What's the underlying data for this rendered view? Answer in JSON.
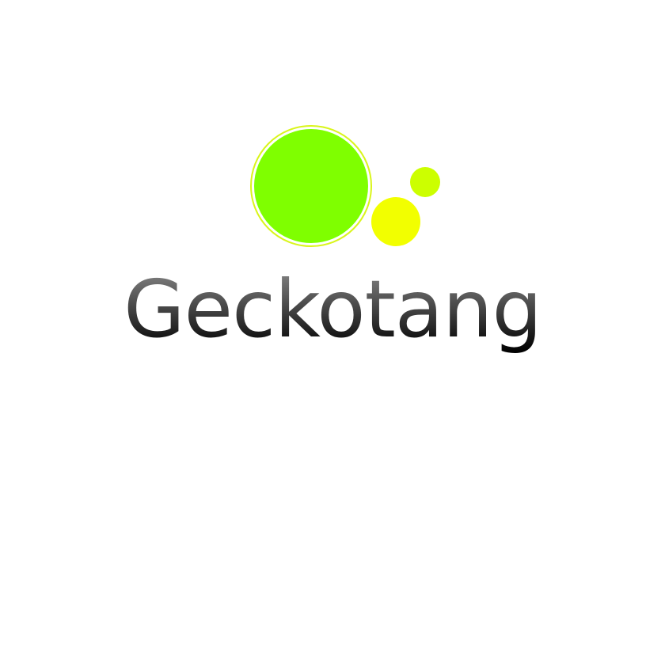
{
  "logo": {
    "wordmark": "Geckotang",
    "icon_name": "bubbles-logo-icon",
    "colors": {
      "large_circle_fill": "#7fff00",
      "large_circle_ring": "#d9f51a",
      "small_circle_top": "#ccff00",
      "small_circle_bottom": "#f2ff00",
      "text_gradient_top": "#8a8a8a",
      "text_gradient_bottom": "#000000",
      "background": "#ffffff"
    }
  }
}
